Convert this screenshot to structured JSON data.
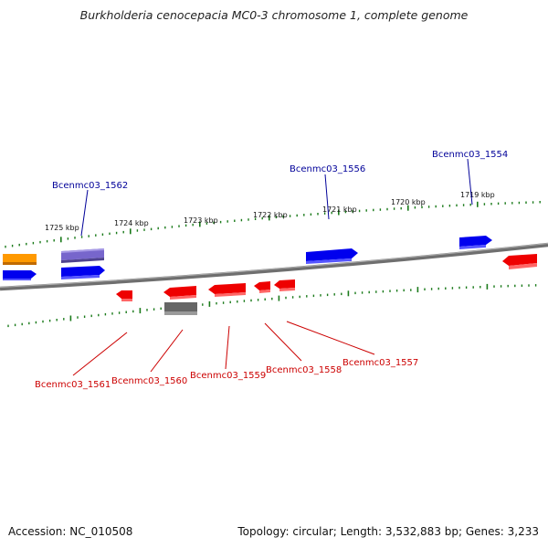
{
  "title": "Burkholderia cenocepacia MC0-3 chromosome 1, complete genome",
  "scale_labels": [
    "1725 kbp",
    "1724 kbp",
    "1723 kbp",
    "1722 kbp",
    "1721 kbp",
    "1720 kbp",
    "1719 kbp"
  ],
  "gene_labels_top": [
    "Bcenmc03_1562",
    "Bcenmc03_1556",
    "Bcenmc03_1554"
  ],
  "gene_labels_bottom": [
    "Bcenmc03_1561",
    "Bcenmc03_1560",
    "Bcenmc03_1559",
    "Bcenmc03_1558",
    "Bcenmc03_1557"
  ],
  "footer": {
    "accession": "Accession: NC_010508",
    "summary": "Topology: circular; Length: 3,532,883 bp; Genes: 3,233"
  },
  "colors": {
    "forward_strand": "#0000ee",
    "reverse_strand": "#ee0000",
    "highlight_gene": "#7766cc",
    "orange_gene": "#ff9900",
    "gray_gene": "#666666",
    "tick": "#1a7a1a",
    "backbone": "#808080",
    "top_label": "#000099",
    "bottom_label": "#cc0000"
  }
}
